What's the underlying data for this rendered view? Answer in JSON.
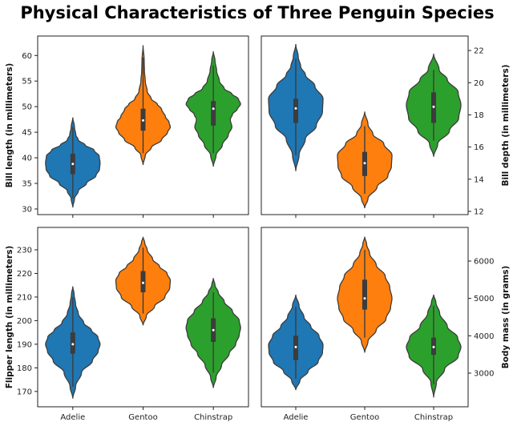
{
  "figure": {
    "title": "Physical Characteristics of Three Penguin Species"
  },
  "chart_data": [
    {
      "type": "violin",
      "position": "top-left",
      "categories": [
        "Adelie",
        "Gentoo",
        "Chinstrap"
      ],
      "show_x_tick_labels": false,
      "ylabel": "Bill length (in millimeters)",
      "y_axis_side": "left",
      "ylim": [
        28.9,
        63.8
      ],
      "yticks": [
        30,
        35,
        40,
        45,
        50,
        55,
        60
      ],
      "series": [
        {
          "category": "Adelie",
          "color": "#1f77b4",
          "min": 32.1,
          "max": 46.0,
          "q1": 36.8,
          "median": 38.8,
          "q3": 40.8,
          "violin_range": [
            30.3,
            47.9
          ],
          "profile": [
            [
              30.3,
              0
            ],
            [
              32,
              0.06
            ],
            [
              33.5,
              0.2
            ],
            [
              35,
              0.5
            ],
            [
              36.5,
              0.85
            ],
            [
              37.8,
              0.98
            ],
            [
              39,
              1
            ],
            [
              40.3,
              0.97
            ],
            [
              41.5,
              0.78
            ],
            [
              42.5,
              0.45
            ],
            [
              43.5,
              0.2
            ],
            [
              44.5,
              0.11
            ],
            [
              46,
              0.06
            ],
            [
              47.9,
              0
            ]
          ]
        },
        {
          "category": "Gentoo",
          "color": "#ff7f0e",
          "min": 40.9,
          "max": 59.6,
          "q1": 45.3,
          "median": 47.3,
          "q3": 49.6,
          "violin_range": [
            38.6,
            62.0
          ],
          "profile": [
            [
              38.6,
              0
            ],
            [
              40.5,
              0.08
            ],
            [
              42,
              0.3
            ],
            [
              43.5,
              0.68
            ],
            [
              45,
              0.9
            ],
            [
              46,
              1
            ],
            [
              47,
              0.95
            ],
            [
              48,
              0.82
            ],
            [
              49.5,
              0.68
            ],
            [
              50.5,
              0.52
            ],
            [
              51.5,
              0.3
            ],
            [
              53,
              0.15
            ],
            [
              55,
              0.08
            ],
            [
              57,
              0.05
            ],
            [
              59,
              0.04
            ],
            [
              62,
              0
            ]
          ]
        },
        {
          "category": "Chinstrap",
          "color": "#2ca02c",
          "min": 40.9,
          "max": 58.0,
          "q1": 46.3,
          "median": 49.6,
          "q3": 51.1,
          "violin_range": [
            38.3,
            60.8
          ],
          "profile": [
            [
              38.3,
              0
            ],
            [
              40.5,
              0.1
            ],
            [
              42.5,
              0.33
            ],
            [
              44.5,
              0.55
            ],
            [
              46,
              0.68
            ],
            [
              47.5,
              0.62
            ],
            [
              48.5,
              0.7
            ],
            [
              49.5,
              0.88
            ],
            [
              50.5,
              1
            ],
            [
              51.5,
              0.92
            ],
            [
              52.5,
              0.68
            ],
            [
              53.5,
              0.4
            ],
            [
              55,
              0.22
            ],
            [
              57,
              0.12
            ],
            [
              59,
              0.06
            ],
            [
              60.8,
              0
            ]
          ]
        }
      ]
    },
    {
      "type": "violin",
      "position": "top-right",
      "categories": [
        "Adelie",
        "Gentoo",
        "Chinstrap"
      ],
      "show_x_tick_labels": false,
      "ylabel": "Bill depth (in millimeters)",
      "y_axis_side": "right",
      "ylim": [
        11.8,
        22.9
      ],
      "yticks": [
        12,
        14,
        16,
        18,
        20,
        22
      ],
      "series": [
        {
          "category": "Adelie",
          "color": "#1f77b4",
          "min": 15.5,
          "max": 21.5,
          "q1": 17.5,
          "median": 18.4,
          "q3": 19.0,
          "violin_range": [
            14.5,
            22.4
          ],
          "profile": [
            [
              14.5,
              0
            ],
            [
              15.5,
              0.12
            ],
            [
              16.5,
              0.35
            ],
            [
              17.3,
              0.75
            ],
            [
              18.2,
              0.98
            ],
            [
              19,
              1
            ],
            [
              19.8,
              0.7
            ],
            [
              20.5,
              0.35
            ],
            [
              21,
              0.18
            ],
            [
              21.6,
              0.09
            ],
            [
              22.4,
              0
            ]
          ]
        },
        {
          "category": "Gentoo",
          "color": "#ff7f0e",
          "min": 13.1,
          "max": 17.3,
          "q1": 14.2,
          "median": 15.0,
          "q3": 15.7,
          "violin_range": [
            12.2,
            18.2
          ],
          "profile": [
            [
              12.2,
              0
            ],
            [
              12.8,
              0.12
            ],
            [
              13.5,
              0.45
            ],
            [
              14.2,
              0.85
            ],
            [
              14.8,
              0.98
            ],
            [
              15.5,
              1
            ],
            [
              16.2,
              0.7
            ],
            [
              16.8,
              0.3
            ],
            [
              17.4,
              0.12
            ],
            [
              18.2,
              0
            ]
          ]
        },
        {
          "category": "Chinstrap",
          "color": "#2ca02c",
          "min": 16.4,
          "max": 20.8,
          "q1": 17.5,
          "median": 18.5,
          "q3": 19.4,
          "violin_range": [
            15.4,
            21.8
          ],
          "profile": [
            [
              15.4,
              0
            ],
            [
              16.2,
              0.15
            ],
            [
              17,
              0.58
            ],
            [
              17.8,
              0.92
            ],
            [
              18.6,
              1
            ],
            [
              19.4,
              0.9
            ],
            [
              20.2,
              0.5
            ],
            [
              20.8,
              0.2
            ],
            [
              21.8,
              0
            ]
          ]
        }
      ]
    },
    {
      "type": "violin",
      "position": "bottom-left",
      "categories": [
        "Adelie",
        "Gentoo",
        "Chinstrap"
      ],
      "show_x_tick_labels": true,
      "ylabel": "Flipper length (in millimeters)",
      "y_axis_side": "left",
      "ylim": [
        163.5,
        239.5
      ],
      "yticks": [
        170,
        180,
        190,
        200,
        210,
        220,
        230
      ],
      "series": [
        {
          "category": "Adelie",
          "color": "#1f77b4",
          "min": 172,
          "max": 210,
          "q1": 186,
          "median": 190,
          "q3": 195,
          "violin_range": [
            167,
            214.5
          ],
          "profile": [
            [
              167,
              0
            ],
            [
              172,
              0.1
            ],
            [
              178,
              0.32
            ],
            [
              183,
              0.72
            ],
            [
              187,
              0.93
            ],
            [
              190,
              1
            ],
            [
              193,
              0.92
            ],
            [
              196,
              0.68
            ],
            [
              199,
              0.4
            ],
            [
              203,
              0.2
            ],
            [
              207,
              0.1
            ],
            [
              211,
              0.05
            ],
            [
              214.5,
              0
            ]
          ]
        },
        {
          "category": "Gentoo",
          "color": "#ff7f0e",
          "min": 203,
          "max": 231,
          "q1": 212,
          "median": 216,
          "q3": 221,
          "violin_range": [
            198,
            235.5
          ],
          "profile": [
            [
              198,
              0
            ],
            [
              202,
              0.12
            ],
            [
              206,
              0.42
            ],
            [
              210,
              0.8
            ],
            [
              214,
              0.98
            ],
            [
              217,
              1
            ],
            [
              220,
              0.88
            ],
            [
              223,
              0.6
            ],
            [
              226,
              0.35
            ],
            [
              230,
              0.15
            ],
            [
              233,
              0.06
            ],
            [
              235.5,
              0
            ]
          ]
        },
        {
          "category": "Chinstrap",
          "color": "#2ca02c",
          "min": 178,
          "max": 212,
          "q1": 191,
          "median": 196,
          "q3": 201,
          "violin_range": [
            171.5,
            218
          ]
        },
        {
          "category": "_chinstrap_profile",
          "color": "#2ca02c",
          "profile": [
            [
              171.5,
              0
            ],
            [
              176,
              0.1
            ],
            [
              181,
              0.3
            ],
            [
              186,
              0.58
            ],
            [
              190,
              0.82
            ],
            [
              194,
              0.95
            ],
            [
              197,
              1
            ],
            [
              200,
              0.95
            ],
            [
              204,
              0.7
            ],
            [
              208,
              0.4
            ],
            [
              212,
              0.18
            ],
            [
              215,
              0.06
            ],
            [
              218,
              0
            ]
          ]
        }
      ]
    },
    {
      "type": "violin",
      "position": "bottom-right",
      "categories": [
        "Adelie",
        "Gentoo",
        "Chinstrap"
      ],
      "show_x_tick_labels": true,
      "ylabel": "Body mass (in grams)",
      "y_axis_side": "right",
      "ylim": [
        2100,
        6900
      ],
      "yticks": [
        3000,
        4000,
        5000,
        6000
      ],
      "series": [
        {
          "category": "Adelie",
          "color": "#1f77b4",
          "min": 2850,
          "max": 4775,
          "q1": 3350,
          "median": 3700,
          "q3": 4000,
          "violin_range": [
            2550,
            5100
          ],
          "profile": [
            [
              2550,
              0
            ],
            [
              2800,
              0.15
            ],
            [
              3050,
              0.45
            ],
            [
              3300,
              0.82
            ],
            [
              3550,
              0.98
            ],
            [
              3750,
              1
            ],
            [
              4000,
              0.85
            ],
            [
              4250,
              0.55
            ],
            [
              4500,
              0.3
            ],
            [
              4800,
              0.12
            ],
            [
              5100,
              0
            ]
          ]
        },
        {
          "category": "Gentoo",
          "color": "#ff7f0e",
          "min": 3950,
          "max": 6300,
          "q1": 4700,
          "median": 5000,
          "q3": 5500,
          "violin_range": [
            3550,
            6650
          ],
          "profile": [
            [
              3550,
              0
            ],
            [
              3850,
              0.12
            ],
            [
              4150,
              0.42
            ],
            [
              4450,
              0.78
            ],
            [
              4750,
              0.95
            ],
            [
              5000,
              1
            ],
            [
              5300,
              0.92
            ],
            [
              5600,
              0.75
            ],
            [
              5900,
              0.42
            ],
            [
              6200,
              0.18
            ],
            [
              6450,
              0.07
            ],
            [
              6650,
              0
            ]
          ]
        },
        {
          "category": "Chinstrap",
          "color": "#2ca02c",
          "min": 2700,
          "max": 4800,
          "q1": 3490,
          "median": 3700,
          "q3": 3950,
          "violin_range": [
            2350,
            5100
          ],
          "profile": [
            [
              2350,
              0
            ],
            [
              2750,
              0.1
            ],
            [
              3100,
              0.4
            ],
            [
              3450,
              0.9
            ],
            [
              3700,
              1
            ],
            [
              3950,
              0.88
            ],
            [
              4250,
              0.5
            ],
            [
              4600,
              0.22
            ],
            [
              4900,
              0.08
            ],
            [
              5100,
              0
            ]
          ]
        }
      ]
    }
  ]
}
